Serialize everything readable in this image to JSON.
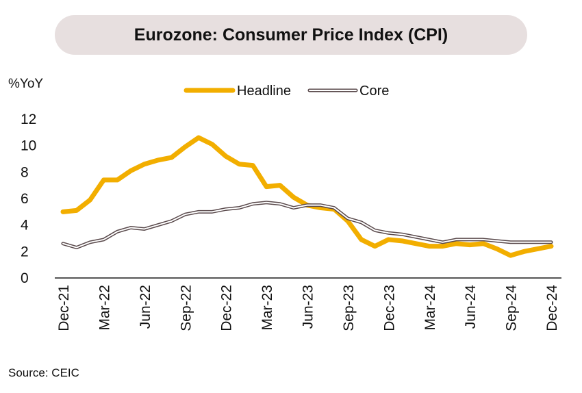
{
  "chart_data": {
    "type": "line",
    "title": "Eurozone: Consumer Price Index (CPI)",
    "ylabel": "%YoY",
    "xlabel": "",
    "ylim": [
      0,
      12
    ],
    "yticks": [
      "0",
      "2",
      "4",
      "6",
      "8",
      "10",
      "12"
    ],
    "xtick_labels": [
      "Dec-21",
      "Mar-22",
      "Jun-22",
      "Sep-22",
      "Dec-22",
      "Mar-23",
      "Jun-23",
      "Sep-23",
      "Dec-23",
      "Mar-24",
      "Jun-24",
      "Sep-24",
      "Dec-24"
    ],
    "legend_position": "top-center",
    "grid": false,
    "x": [
      "Dec-21",
      "Jan-22",
      "Feb-22",
      "Mar-22",
      "Apr-22",
      "May-22",
      "Jun-22",
      "Jul-22",
      "Aug-22",
      "Sep-22",
      "Oct-22",
      "Nov-22",
      "Dec-22",
      "Jan-23",
      "Feb-23",
      "Mar-23",
      "Apr-23",
      "May-23",
      "Jun-23",
      "Jul-23",
      "Aug-23",
      "Sep-23",
      "Oct-23",
      "Nov-23",
      "Dec-23",
      "Jan-24",
      "Feb-24",
      "Mar-24",
      "Apr-24",
      "May-24",
      "Jun-24",
      "Jul-24",
      "Aug-24",
      "Sep-24",
      "Oct-24",
      "Nov-24",
      "Dec-24"
    ],
    "series": [
      {
        "name": "Headline",
        "color": "#f2ae00",
        "values": [
          5.0,
          5.1,
          5.9,
          7.4,
          7.4,
          8.1,
          8.6,
          8.9,
          9.1,
          9.9,
          10.6,
          10.1,
          9.2,
          8.6,
          8.5,
          6.9,
          7.0,
          6.1,
          5.5,
          5.3,
          5.2,
          4.3,
          2.9,
          2.4,
          2.9,
          2.8,
          2.6,
          2.4,
          2.4,
          2.6,
          2.5,
          2.6,
          2.2,
          1.7,
          2.0,
          2.2,
          2.4
        ]
      },
      {
        "name": "Core",
        "color": "#5a4a4c",
        "values": [
          2.6,
          2.3,
          2.7,
          2.9,
          3.5,
          3.8,
          3.7,
          4.0,
          4.3,
          4.8,
          5.0,
          5.0,
          5.2,
          5.3,
          5.6,
          5.7,
          5.6,
          5.3,
          5.5,
          5.5,
          5.3,
          4.5,
          4.2,
          3.6,
          3.4,
          3.3,
          3.1,
          2.9,
          2.7,
          2.9,
          2.9,
          2.9,
          2.8,
          2.7,
          2.7,
          2.7,
          2.7
        ]
      }
    ]
  },
  "source": "Source: CEIC"
}
